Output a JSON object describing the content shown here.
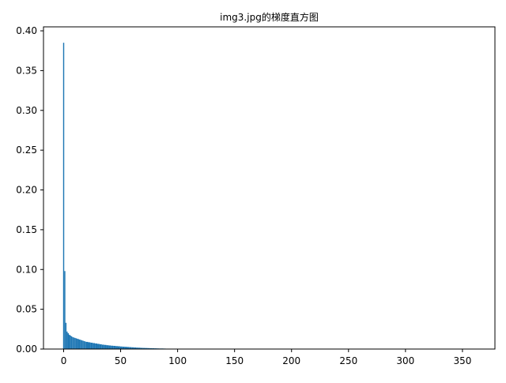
{
  "chart_data": {
    "type": "bar",
    "title": "img3.jpg的梯度直方图",
    "xlabel": "",
    "ylabel": "",
    "xlim": [
      -17.7,
      378.5
    ],
    "ylim": [
      0,
      0.405
    ],
    "xticks": [
      0,
      50,
      100,
      150,
      200,
      250,
      300,
      350
    ],
    "yticks": [
      0.0,
      0.05,
      0.1,
      0.15,
      0.2,
      0.25,
      0.3,
      0.35,
      0.4
    ],
    "xtick_labels": [
      "0",
      "50",
      "100",
      "150",
      "200",
      "250",
      "300",
      "350"
    ],
    "ytick_labels": [
      "0.00",
      "0.05",
      "0.10",
      "0.15",
      "0.20",
      "0.25",
      "0.30",
      "0.35",
      "0.40"
    ],
    "bar_width": 1,
    "bar_color": "#1f77b4",
    "grid": false,
    "bins": [
      0,
      1,
      2,
      3,
      4,
      5,
      6,
      7,
      8,
      9,
      10,
      11,
      12,
      13,
      14,
      15,
      16,
      17,
      18,
      19,
      20,
      22,
      24,
      26,
      28,
      30,
      32,
      34,
      36,
      38,
      40,
      42,
      44,
      46,
      48,
      50,
      52,
      54,
      56,
      58,
      60,
      62,
      64,
      66,
      68,
      70,
      72,
      74,
      76,
      78,
      80,
      82,
      84,
      86,
      88,
      90,
      92,
      94,
      96,
      98,
      100
    ],
    "values": [
      0.385,
      0.098,
      0.033,
      0.022,
      0.02,
      0.018,
      0.017,
      0.016,
      0.015,
      0.0145,
      0.014,
      0.0135,
      0.013,
      0.0125,
      0.012,
      0.0115,
      0.011,
      0.0105,
      0.01,
      0.0095,
      0.009,
      0.0085,
      0.008,
      0.0075,
      0.007,
      0.0065,
      0.006,
      0.0055,
      0.0052,
      0.0048,
      0.0045,
      0.0042,
      0.004,
      0.0037,
      0.0035,
      0.0032,
      0.003,
      0.0028,
      0.0026,
      0.0024,
      0.0022,
      0.002,
      0.0018,
      0.0017,
      0.0015,
      0.0014,
      0.0013,
      0.0012,
      0.0011,
      0.001,
      0.0009,
      0.0008,
      0.0007,
      0.0007,
      0.0006,
      0.0005,
      0.0005,
      0.0004,
      0.0004,
      0.0003,
      0.0002
    ]
  }
}
